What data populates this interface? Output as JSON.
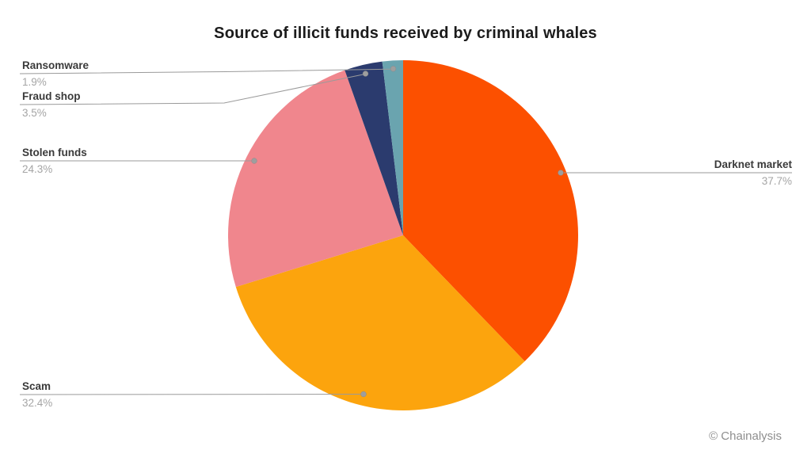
{
  "title": "Source of illicit funds received by criminal whales",
  "attribution": "© Chainalysis",
  "chart_data": {
    "type": "pie",
    "title": "Source of illicit funds received by criminal whales",
    "unit": "%",
    "direction": "clockwise",
    "start_angle_deg": 0,
    "legend_position": "callout labels with leader lines",
    "slices": [
      {
        "label": "Darknet market",
        "value": 37.7,
        "percent_label": "37.7%",
        "color": "#fc5000"
      },
      {
        "label": "Scam",
        "value": 32.4,
        "percent_label": "32.4%",
        "color": "#fca40d"
      },
      {
        "label": "Stolen funds",
        "value": 24.3,
        "percent_label": "24.3%",
        "color": "#f0868d"
      },
      {
        "label": "Fraud shop",
        "value": 3.5,
        "percent_label": "3.5%",
        "color": "#2b3b6e"
      },
      {
        "label": "Ransomware",
        "value": 1.9,
        "percent_label": "1.9%",
        "color": "#6aa4af"
      }
    ],
    "colors": {
      "background": "#ffffff",
      "title_text": "#1b1b1b",
      "label_text": "#3a3a3a",
      "percent_text": "#a5a5a5",
      "leader_line": "#9a9a9a",
      "attribution_text": "#8e8e8e"
    }
  }
}
